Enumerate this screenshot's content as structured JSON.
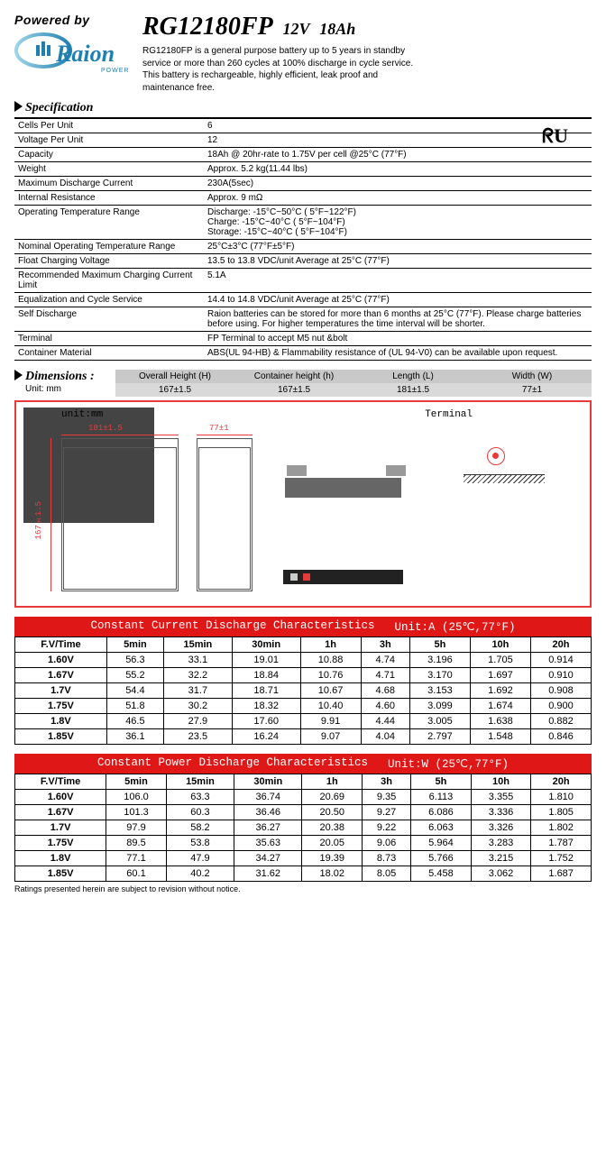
{
  "header": {
    "powered_by": "Powered by",
    "brand": "Raion",
    "brand_sub": "POWER",
    "model": "RG12180FP",
    "voltage": "12V",
    "capacity_ah": "18Ah",
    "description": "RG12180FP is a general purpose battery up to 5 years in standby service or more than 260 cycles at 100% discharge in cycle service. This battery is rechargeable, highly efficient, leak proof and maintenance free."
  },
  "spec_section_title": "Specification",
  "spec_rows": [
    {
      "label": "Cells Per Unit",
      "value": "6"
    },
    {
      "label": "Voltage Per Unit",
      "value": "12"
    },
    {
      "label": "Capacity",
      "value": "18Ah @ 20hr-rate to 1.75V per cell @25°C (77°F)"
    },
    {
      "label": "Weight",
      "value": "Approx. 5.2 kg(11.44 lbs)"
    },
    {
      "label": "Maximum Discharge Current",
      "value": "230A(5sec)"
    },
    {
      "label": "Internal Resistance",
      "value": "Approx. 9 mΩ"
    },
    {
      "label": "Operating Temperature Range",
      "value": "Discharge: -15°C~50°C ( 5°F~122°F)\nCharge: -15°C~40°C ( 5°F~104°F)\nStorage: -15°C~40°C ( 5°F~104°F)"
    },
    {
      "label": "Nominal Operating Temperature Range",
      "value": "25°C±3°C (77°F±5°F)"
    },
    {
      "label": "Float Charging Voltage",
      "value": "13.5 to 13.8 VDC/unit Average at 25°C (77°F)"
    },
    {
      "label": "Recommended Maximum Charging Current Limit",
      "value": "5.1A"
    },
    {
      "label": "Equalization and Cycle Service",
      "value": "14.4 to 14.8 VDC/unit Average at 25°C (77°F)"
    },
    {
      "label": "Self Discharge",
      "value": "Raion batteries can be stored for more than 6 months at 25°C (77°F). Please charge batteries before using. For higher temperatures the time interval will be shorter."
    },
    {
      "label": "Terminal",
      "value": "FP Terminal to accept M5 nut &bolt"
    },
    {
      "label": "Container Material",
      "value": "ABS(UL 94-HB) & Flammability resistance of (UL 94-V0) can be available upon request."
    }
  ],
  "cert_mark": "ᖇU",
  "dimensions": {
    "title": "Dimensions :",
    "unit_label": "Unit: mm",
    "headers": [
      "Overall Height (H)",
      "Container height (h)",
      "Length (L)",
      "Width (W)"
    ],
    "values": [
      "167±1.5",
      "167±1.5",
      "181±1.5",
      "77±1"
    ],
    "diagram_labels": {
      "unit": "unit:mm",
      "terminal": "Terminal",
      "w181": "181±1.5",
      "w77": "77±1",
      "h167": "167±1.5"
    }
  },
  "current_table": {
    "title_l": "Constant Current Discharge Characteristics",
    "title_r": "Unit:A (25℃,77°F)",
    "cols": [
      "F.V/Time",
      "5min",
      "15min",
      "30min",
      "1h",
      "3h",
      "5h",
      "10h",
      "20h"
    ],
    "rows": [
      [
        "1.60V",
        "56.3",
        "33.1",
        "19.01",
        "10.88",
        "4.74",
        "3.196",
        "1.705",
        "0.914"
      ],
      [
        "1.67V",
        "55.2",
        "32.2",
        "18.84",
        "10.76",
        "4.71",
        "3.170",
        "1.697",
        "0.910"
      ],
      [
        "1.7V",
        "54.4",
        "31.7",
        "18.71",
        "10.67",
        "4.68",
        "3.153",
        "1.692",
        "0.908"
      ],
      [
        "1.75V",
        "51.8",
        "30.2",
        "18.32",
        "10.40",
        "4.60",
        "3.099",
        "1.674",
        "0.900"
      ],
      [
        "1.8V",
        "46.5",
        "27.9",
        "17.60",
        "9.91",
        "4.44",
        "3.005",
        "1.638",
        "0.882"
      ],
      [
        "1.85V",
        "36.1",
        "23.5",
        "16.24",
        "9.07",
        "4.04",
        "2.797",
        "1.548",
        "0.846"
      ]
    ]
  },
  "power_table": {
    "title_l": "Constant Power Discharge Characteristics",
    "title_r": "Unit:W (25℃,77°F)",
    "cols": [
      "F.V/Time",
      "5min",
      "15min",
      "30min",
      "1h",
      "3h",
      "5h",
      "10h",
      "20h"
    ],
    "rows": [
      [
        "1.60V",
        "106.0",
        "63.3",
        "36.74",
        "20.69",
        "9.35",
        "6.113",
        "3.355",
        "1.810"
      ],
      [
        "1.67V",
        "101.3",
        "60.3",
        "36.46",
        "20.50",
        "9.27",
        "6.086",
        "3.336",
        "1.805"
      ],
      [
        "1.7V",
        "97.9",
        "58.2",
        "36.27",
        "20.38",
        "9.22",
        "6.063",
        "3.326",
        "1.802"
      ],
      [
        "1.75V",
        "89.5",
        "53.8",
        "35.63",
        "20.05",
        "9.06",
        "5.964",
        "3.283",
        "1.787"
      ],
      [
        "1.8V",
        "77.1",
        "47.9",
        "34.27",
        "19.39",
        "8.73",
        "5.766",
        "3.215",
        "1.752"
      ],
      [
        "1.85V",
        "60.1",
        "40.2",
        "31.62",
        "18.02",
        "8.05",
        "5.458",
        "3.062",
        "1.687"
      ]
    ]
  },
  "footnote": "Ratings presented herein are subject to revision without notice.",
  "style": {
    "accent_red": "#e01717",
    "diagram_red": "#e83a3a",
    "dim_header_bg": "#d9d9d9",
    "logo_gradient_start": "#9cd4e8",
    "logo_gradient_end": "#1f7fb0"
  }
}
